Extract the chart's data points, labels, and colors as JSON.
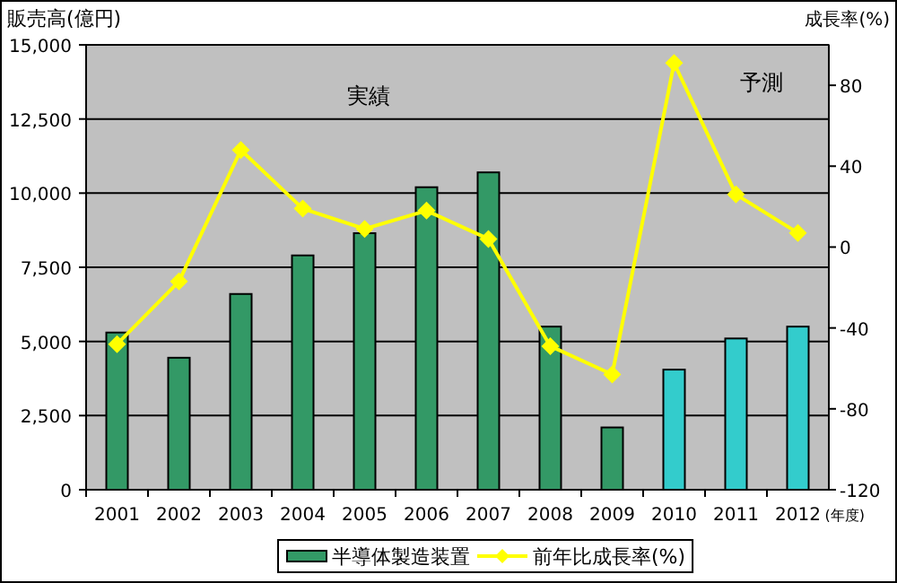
{
  "chart_data": {
    "type": "bar",
    "ylabel": "販売高(億円)",
    "y2label": "成長率(%)",
    "xlabel": "(年度)",
    "categories": [
      "2001",
      "2002",
      "2003",
      "2004",
      "2005",
      "2006",
      "2007",
      "2008",
      "2009",
      "2010",
      "2011",
      "2012"
    ],
    "series": [
      {
        "name": "半導体製造装置",
        "color": "#339966",
        "colors": [
          "#339966",
          "#339966",
          "#339966",
          "#339966",
          "#339966",
          "#339966",
          "#339966",
          "#339966",
          "#339966",
          "#33cccc",
          "#33cccc",
          "#33cccc"
        ],
        "values": [
          5300,
          4450,
          6600,
          7900,
          8650,
          10200,
          10700,
          5500,
          2100,
          4050,
          5100,
          5500
        ]
      },
      {
        "name": "前年比成長率(%)",
        "type": "line",
        "axis": "y2",
        "color": "#ffff00",
        "marker": "diamond",
        "values": [
          -48,
          -17,
          48,
          19,
          9,
          18,
          4,
          -49,
          -63,
          91,
          26,
          7
        ]
      }
    ],
    "ylim": [
      0,
      15000
    ],
    "yticks": [
      {
        "value": 0,
        "label": "0"
      },
      {
        "value": 2500,
        "label": "2,500"
      },
      {
        "value": 5000,
        "label": "5,000"
      },
      {
        "value": 7500,
        "label": "7,500"
      },
      {
        "value": 10000,
        "label": "10,000"
      },
      {
        "value": 12500,
        "label": "12,500"
      },
      {
        "value": 15000,
        "label": "15,000"
      }
    ],
    "y2lim": [
      -120,
      100
    ],
    "y2ticks": [
      -120,
      -80,
      -40,
      0,
      40,
      80
    ],
    "annotations": [
      "実績",
      "予測"
    ],
    "grid": "y",
    "legend": "bottom"
  }
}
